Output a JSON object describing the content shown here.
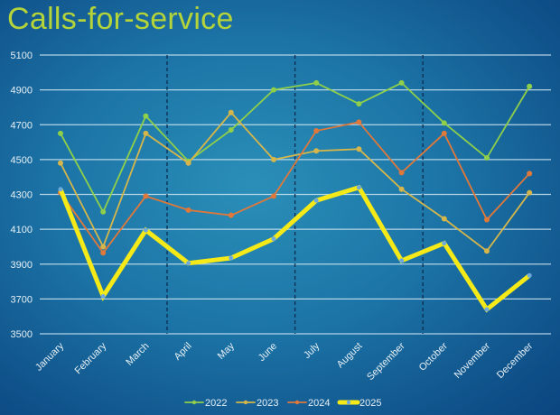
{
  "chart_data": {
    "type": "line",
    "title": "Calls-for-service",
    "xlabel": "",
    "ylabel": "",
    "categories": [
      "January",
      "February",
      "March",
      "April",
      "May",
      "June",
      "July",
      "August",
      "September",
      "October",
      "November",
      "December"
    ],
    "ylim": [
      3500,
      5100
    ],
    "yticks": [
      3500,
      3700,
      3900,
      4100,
      4300,
      4500,
      4700,
      4900,
      5100
    ],
    "grid": true,
    "legend_position": "bottom",
    "quarter_dividers_after": [
      "March",
      "June",
      "September"
    ],
    "series": [
      {
        "name": "2022",
        "color": "#8fcf4a",
        "values": [
          4650,
          4200,
          4750,
          4490,
          4670,
          4900,
          4940,
          4820,
          4940,
          4710,
          4510,
          4920
        ]
      },
      {
        "name": "2023",
        "color": "#d6b64a",
        "values": [
          4480,
          4000,
          4650,
          4480,
          4770,
          4500,
          4550,
          4560,
          4330,
          4160,
          3975,
          4310
        ]
      },
      {
        "name": "2024",
        "color": "#e0783a",
        "values": [
          4310,
          3965,
          4290,
          4210,
          4180,
          4290,
          4665,
          4715,
          4425,
          4650,
          4155,
          4420
        ]
      },
      {
        "name": "2025",
        "color": "#f5ea18",
        "values": [
          4330,
          3715,
          4095,
          3905,
          3935,
          4045,
          4265,
          4340,
          3920,
          4020,
          3640,
          3835
        ]
      }
    ]
  }
}
